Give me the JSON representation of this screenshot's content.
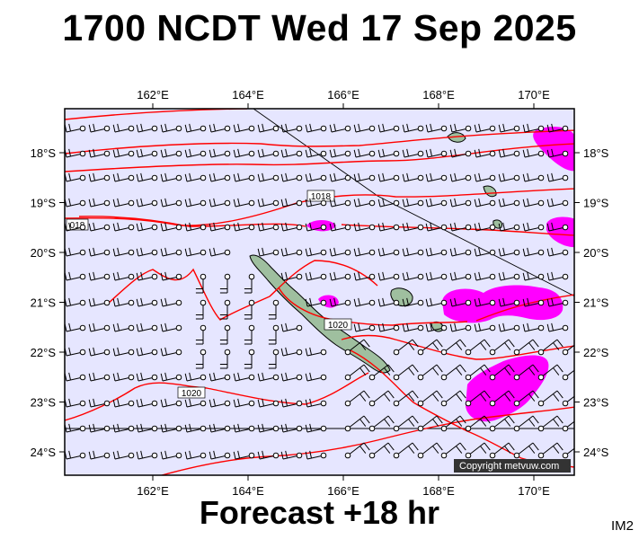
{
  "header": {
    "title": "1700 NCDT Wed 17 Sep 2025",
    "subtitle": "Forecast +18 hr",
    "image_tag": "IM2"
  },
  "map": {
    "region": "New Caledonia",
    "lon_range": [
      160.0,
      171.0
    ],
    "lat_range": [
      -24.4,
      -17.0
    ],
    "top_lon_labels": [
      "162°E",
      "164°E",
      "166°E",
      "168°E",
      "170°E"
    ],
    "bottom_lon_labels": [
      "162°E",
      "164°E",
      "166°E",
      "168°E",
      "170°E"
    ],
    "left_lat_labels": [
      "18°S",
      "19°S",
      "20°S",
      "21°S",
      "22°S",
      "23°S",
      "24°S"
    ],
    "right_lat_labels": [
      "18°S",
      "19°S",
      "20°S",
      "21°S",
      "22°S",
      "23°S",
      "24°S"
    ],
    "isobar_labels": [
      "018",
      "1018",
      "1020",
      "1020"
    ],
    "copyright": "Copyright metvuw.com",
    "colors": {
      "ocean": "#e6e6ff",
      "isobar": "#ff0000",
      "heavy_rain": "#ff00ff",
      "land": "#9fbf9f",
      "wind_barb": "#000000"
    },
    "legend_layers": [
      "isobars",
      "wind-barbs",
      "rain-areas",
      "land"
    ]
  }
}
